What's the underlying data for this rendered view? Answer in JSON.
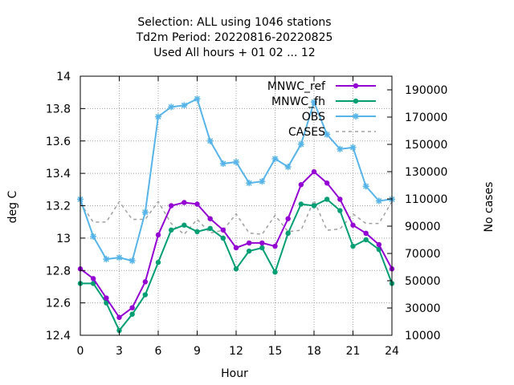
{
  "chart_data": {
    "type": "line",
    "title_lines": [
      "Selection: ALL using  1046 stations",
      "Td2m   Period: 20220816-20220825",
      "Used  All hours + 01 02 ... 12"
    ],
    "xlabel": "Hour",
    "ylabel": "deg C",
    "y2label": "No cases",
    "xlim": [
      0,
      24
    ],
    "ylim": [
      12.4,
      14
    ],
    "y2lim": [
      10000,
      200000
    ],
    "xticks": [
      "0",
      "3",
      "6",
      "9",
      "12",
      "15",
      "18",
      "21",
      "24"
    ],
    "yticks": [
      "12.4",
      "12.6",
      "12.8",
      "13",
      "13.2",
      "13.4",
      "13.6",
      "13.8",
      "14"
    ],
    "y2ticks": [
      "10000",
      "30000",
      "50000",
      "70000",
      "90000",
      "110000",
      "130000",
      "150000",
      "170000",
      "190000"
    ],
    "grid": true,
    "x": [
      0,
      1,
      2,
      3,
      4,
      5,
      6,
      7,
      8,
      9,
      10,
      11,
      12,
      13,
      14,
      15,
      16,
      17,
      18,
      19,
      20,
      21,
      22,
      23,
      24
    ],
    "series": [
      {
        "name": "MNWC_ref",
        "color": "#9400d3",
        "marker": "circle",
        "values": [
          12.81,
          12.75,
          12.63,
          12.51,
          12.57,
          12.73,
          13.02,
          13.2,
          13.22,
          13.21,
          13.12,
          13.05,
          12.94,
          12.97,
          12.97,
          12.95,
          13.12,
          13.33,
          13.41,
          13.34,
          13.24,
          13.08,
          13.03,
          12.96,
          12.81
        ]
      },
      {
        "name": "MNWC_fh",
        "color": "#009e73",
        "marker": "circle",
        "values": [
          12.72,
          12.72,
          12.6,
          12.43,
          12.53,
          12.65,
          12.85,
          13.05,
          13.08,
          13.04,
          13.06,
          13.0,
          12.81,
          12.92,
          12.94,
          12.79,
          13.03,
          13.21,
          13.2,
          13.24,
          13.17,
          12.95,
          12.99,
          12.93,
          12.72
        ]
      },
      {
        "name": "OBS",
        "color": "#56b4e9",
        "marker": "star",
        "values": [
          13.24,
          13.01,
          12.87,
          12.88,
          12.86,
          13.16,
          13.75,
          13.81,
          13.82,
          13.86,
          13.6,
          13.46,
          13.47,
          13.34,
          13.35,
          13.49,
          13.44,
          13.58,
          13.84,
          13.64,
          13.55,
          13.56,
          13.32,
          13.23,
          13.24
        ]
      },
      {
        "name": "CASES",
        "color": "#a0a0a0",
        "axis": "y2",
        "dashed": true,
        "values": [
          107000,
          93000,
          93000,
          108000,
          95000,
          95000,
          108000,
          92000,
          84000,
          95000,
          85000,
          87000,
          99000,
          85000,
          84000,
          98000,
          86000,
          87000,
          109000,
          87000,
          88000,
          99000,
          92000,
          92000,
          108000
        ]
      }
    ]
  }
}
